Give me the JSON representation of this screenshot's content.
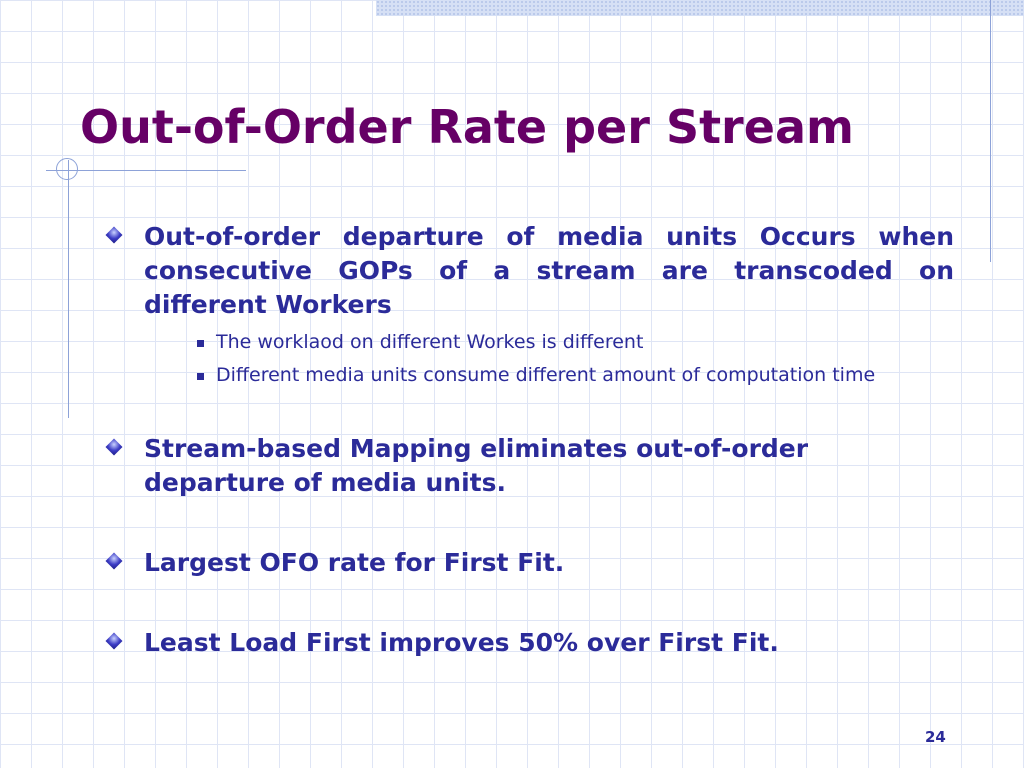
{
  "slide": {
    "title": "Out-of-Order Rate per Stream",
    "bullets": [
      {
        "text": "Out-of-order departure of media units Occurs when consecutive GOPs of a stream are transcoded on different Workers",
        "sub_items": [
          "The worklaod on different Workes is different",
          "Different media units consume different amount of computation time"
        ]
      },
      {
        "text": "Stream-based Mapping eliminates out-of-order departure of media units."
      },
      {
        "text": "Largest OFO rate for First Fit."
      },
      {
        "text": "Least Load First improves 50% over First Fit."
      }
    ],
    "page_number": "24"
  },
  "colors": {
    "title": "#660066",
    "body_text": "#2b2b99",
    "grid": "#dfe5f5",
    "accent_lines": "#8da2d8"
  }
}
